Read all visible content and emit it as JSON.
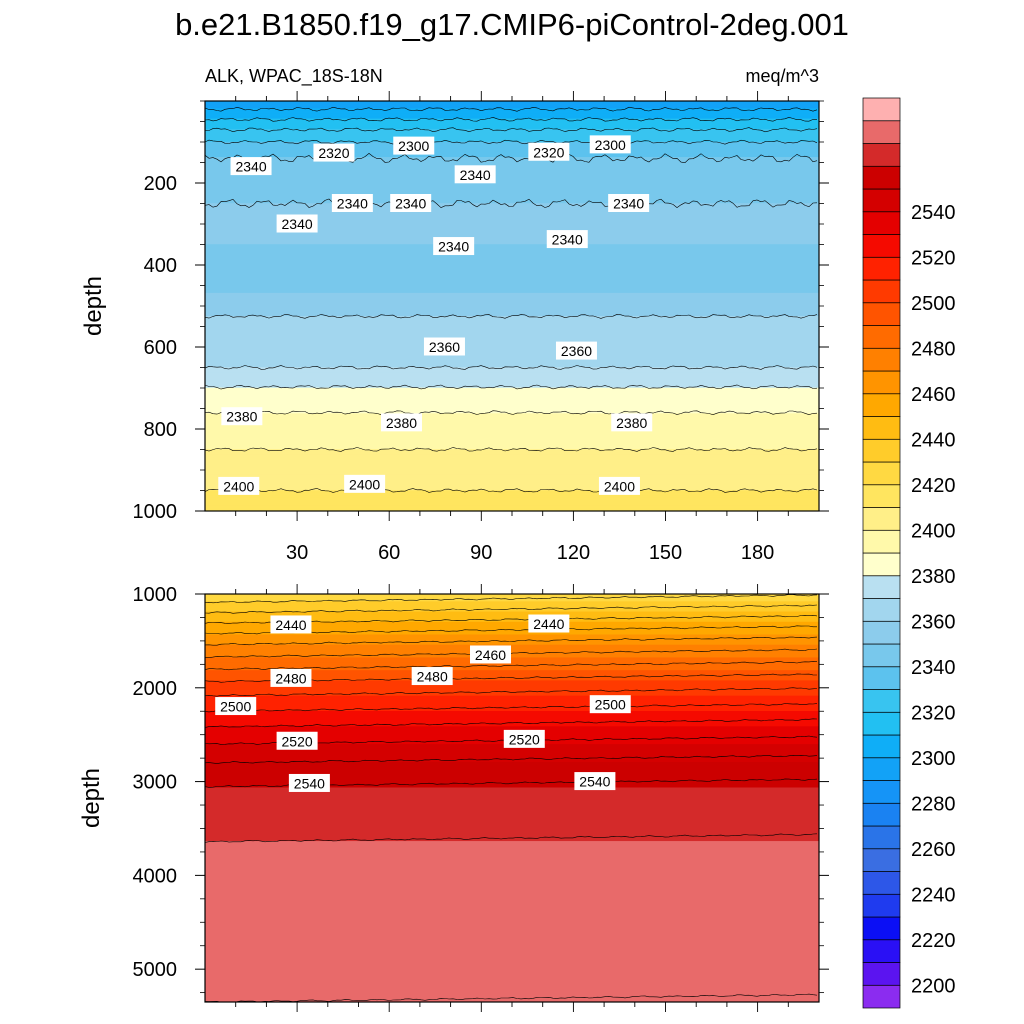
{
  "figure": {
    "title": "b.e21.B1850.f19_g17.CMIP6-piControl-2deg.001",
    "left_subtitle": "ALK, WPAC_18S-18N",
    "right_subtitle": "meq/m^3"
  },
  "chart_data": [
    {
      "type": "heatmap",
      "name": "upper-panel",
      "xlabel": "",
      "ylabel": "depth",
      "xlim": [
        0,
        200
      ],
      "ylim": [
        1000,
        0
      ],
      "y_reversed": true,
      "x_ticks": [
        30,
        60,
        90,
        120,
        150,
        180
      ],
      "y_ticks": [
        200,
        400,
        600,
        800,
        1000
      ],
      "contour_interval": 10,
      "field_profile": {
        "depth": [
          0,
          20,
          40,
          60,
          80,
          100,
          120,
          150,
          200,
          250,
          300,
          350,
          400,
          450,
          500,
          550,
          600,
          650,
          690,
          720,
          800,
          900,
          1000
        ],
        "value": [
          2282,
          2290,
          2298,
          2306,
          2314,
          2320,
          2326,
          2332,
          2336,
          2340,
          2342,
          2340,
          2338,
          2336,
          2348,
          2352,
          2356,
          2360,
          2368,
          2376,
          2384,
          2396,
          2404
        ]
      },
      "contour_labels": [
        {
          "text": "2340",
          "x": 15,
          "y": 160
        },
        {
          "text": "2320",
          "x": 42,
          "y": 127
        },
        {
          "text": "2300",
          "x": 68,
          "y": 110
        },
        {
          "text": "2340",
          "x": 88,
          "y": 180
        },
        {
          "text": "2320",
          "x": 112,
          "y": 125
        },
        {
          "text": "2300",
          "x": 132,
          "y": 107
        },
        {
          "text": "2340",
          "x": 30,
          "y": 300
        },
        {
          "text": "2340",
          "x": 48,
          "y": 250
        },
        {
          "text": "2340",
          "x": 67,
          "y": 250
        },
        {
          "text": "2340",
          "x": 81,
          "y": 355
        },
        {
          "text": "2340",
          "x": 118,
          "y": 338
        },
        {
          "text": "2340",
          "x": 138,
          "y": 250
        },
        {
          "text": "2360",
          "x": 78,
          "y": 600
        },
        {
          "text": "2360",
          "x": 121,
          "y": 610
        },
        {
          "text": "2380",
          "x": 12,
          "y": 770
        },
        {
          "text": "2380",
          "x": 64,
          "y": 785
        },
        {
          "text": "2380",
          "x": 139,
          "y": 785
        },
        {
          "text": "2400",
          "x": 11,
          "y": 940
        },
        {
          "text": "2400",
          "x": 52,
          "y": 935
        },
        {
          "text": "2400",
          "x": 135,
          "y": 940
        }
      ]
    },
    {
      "type": "heatmap",
      "name": "lower-panel",
      "xlabel": "",
      "ylabel": "depth",
      "xlim": [
        0,
        200
      ],
      "ylim": [
        5350,
        1000
      ],
      "y_reversed": true,
      "y_ticks": [
        1000,
        2000,
        3000,
        4000,
        5000
      ],
      "contour_interval": 10,
      "field_profile": {
        "depth": [
          1000,
          1500,
          2000,
          2500,
          2900,
          3300,
          5350
        ],
        "value": [
          2412,
          2457,
          2495,
          2525,
          2545,
          2558,
          2570
        ]
      },
      "contour_labels": [
        {
          "text": "2440",
          "x": 28,
          "y": 1330
        },
        {
          "text": "2440",
          "x": 112,
          "y": 1320
        },
        {
          "text": "2460",
          "x": 93,
          "y": 1650
        },
        {
          "text": "2480",
          "x": 28,
          "y": 1900
        },
        {
          "text": "2480",
          "x": 74,
          "y": 1880
        },
        {
          "text": "2500",
          "x": 10,
          "y": 2200
        },
        {
          "text": "2500",
          "x": 132,
          "y": 2180
        },
        {
          "text": "2520",
          "x": 30,
          "y": 2570
        },
        {
          "text": "2520",
          "x": 104,
          "y": 2550
        },
        {
          "text": "2540",
          "x": 34,
          "y": 3020
        },
        {
          "text": "2540",
          "x": 127,
          "y": 3000
        }
      ]
    }
  ],
  "colorbar": {
    "levels_low": 2190,
    "levels_step": 10,
    "colors": [
      "#8b2cf0",
      "#5b14f0",
      "#2a10f5",
      "#0b0ff5",
      "#1f3bef",
      "#2d57e8",
      "#3a6ee2",
      "#2a74e8",
      "#1a82f2",
      "#1594f7",
      "#12a2f7",
      "#0faef7",
      "#22c0f2",
      "#38c4f0",
      "#5cc2ee",
      "#78c8ec",
      "#8cccec",
      "#a2d6ee",
      "#b9e0f1",
      "#ffffcc",
      "#fff9aa",
      "#ffef88",
      "#ffe55f",
      "#ffd942",
      "#ffcc2a",
      "#ffbc12",
      "#ffa800",
      "#ff9400",
      "#ff8000",
      "#ff6b00",
      "#ff5400",
      "#ff3a00",
      "#ff2200",
      "#f50a00",
      "#e40000",
      "#d40000",
      "#cc0000",
      "#d42a2a",
      "#e86a6a",
      "#feb0b0"
    ],
    "tick_labels": [
      "2200",
      "2220",
      "2240",
      "2260",
      "2280",
      "2300",
      "2320",
      "2340",
      "2360",
      "2380",
      "2400",
      "2420",
      "2440",
      "2460",
      "2480",
      "2500",
      "2520",
      "2540"
    ]
  }
}
